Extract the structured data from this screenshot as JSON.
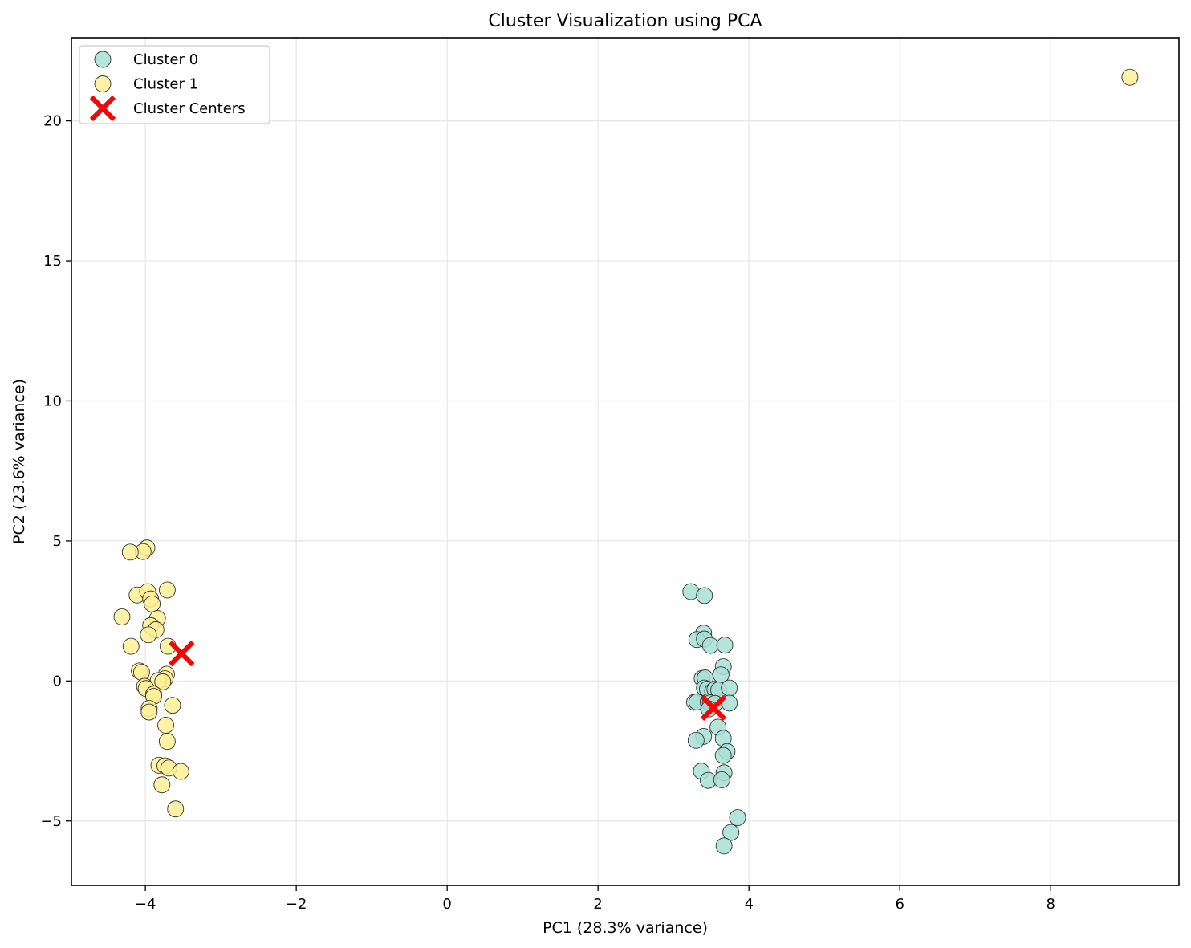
{
  "chart_data": {
    "type": "scatter",
    "title": "Cluster Visualization using PCA",
    "xlabel": "PC1 (28.3% variance)",
    "ylabel": "PC2 (23.6% variance)",
    "xlim": [
      -4.98,
      9.7
    ],
    "ylim": [
      -7.3,
      22.97
    ],
    "xticks": [
      -4,
      -2,
      0,
      2,
      4,
      6,
      8
    ],
    "xtick_labels": [
      "−4",
      "−2",
      "0",
      "2",
      "4",
      "6",
      "8"
    ],
    "yticks": [
      -5,
      0,
      5,
      10,
      15,
      20
    ],
    "ytick_labels": [
      "−5",
      "0",
      "5",
      "10",
      "15",
      "20"
    ],
    "grid": true,
    "legend": {
      "placement": "top-left"
    },
    "series": [
      {
        "name": "Cluster 0",
        "marker": "circle",
        "color": "#a8dfd3",
        "points": [
          [
            3.23,
            3.19
          ],
          [
            3.41,
            3.05
          ],
          [
            3.4,
            1.71
          ],
          [
            3.31,
            1.48
          ],
          [
            3.41,
            1.5
          ],
          [
            3.49,
            1.27
          ],
          [
            3.68,
            1.28
          ],
          [
            3.66,
            0.51
          ],
          [
            3.63,
            0.22
          ],
          [
            3.38,
            0.09
          ],
          [
            3.42,
            0.11
          ],
          [
            3.41,
            -0.25
          ],
          [
            3.45,
            -0.29
          ],
          [
            3.52,
            -0.36
          ],
          [
            3.55,
            -0.3
          ],
          [
            3.6,
            -0.32
          ],
          [
            3.74,
            -0.25
          ],
          [
            3.28,
            -0.76
          ],
          [
            3.31,
            -0.75
          ],
          [
            3.46,
            -0.75
          ],
          [
            3.49,
            -0.78
          ],
          [
            3.55,
            -0.8
          ],
          [
            3.74,
            -0.79
          ],
          [
            3.47,
            -1.0
          ],
          [
            3.59,
            -1.65
          ],
          [
            3.66,
            -2.05
          ],
          [
            3.4,
            -1.98
          ],
          [
            3.3,
            -2.12
          ],
          [
            3.71,
            -2.52
          ],
          [
            3.66,
            -2.66
          ],
          [
            3.67,
            -3.28
          ],
          [
            3.37,
            -3.22
          ],
          [
            3.46,
            -3.55
          ],
          [
            3.64,
            -3.53
          ],
          [
            3.85,
            -4.88
          ],
          [
            3.76,
            -5.41
          ],
          [
            3.67,
            -5.89
          ]
        ]
      },
      {
        "name": "Cluster 1",
        "marker": "circle",
        "color": "#fdf095",
        "points": [
          [
            9.05,
            21.56
          ],
          [
            -3.98,
            4.75
          ],
          [
            -4.03,
            4.62
          ],
          [
            -4.2,
            4.6
          ],
          [
            -3.71,
            3.25
          ],
          [
            -4.11,
            3.07
          ],
          [
            -3.97,
            3.19
          ],
          [
            -3.93,
            2.93
          ],
          [
            -3.91,
            2.75
          ],
          [
            -4.31,
            2.29
          ],
          [
            -3.84,
            2.23
          ],
          [
            -3.93,
            1.98
          ],
          [
            -3.86,
            1.83
          ],
          [
            -3.96,
            1.65
          ],
          [
            -4.19,
            1.24
          ],
          [
            -3.7,
            1.24
          ],
          [
            -4.08,
            0.36
          ],
          [
            -4.05,
            0.31
          ],
          [
            -3.72,
            0.24
          ],
          [
            -3.74,
            0.08
          ],
          [
            -3.83,
            0.01
          ],
          [
            -3.77,
            -0.03
          ],
          [
            -4.01,
            -0.19
          ],
          [
            -3.99,
            -0.27
          ],
          [
            -3.89,
            -0.47
          ],
          [
            -3.89,
            -0.55
          ],
          [
            -3.64,
            -0.87
          ],
          [
            -3.95,
            -0.98
          ],
          [
            -3.95,
            -1.11
          ],
          [
            -3.73,
            -1.58
          ],
          [
            -3.71,
            -2.16
          ],
          [
            -3.82,
            -3.01
          ],
          [
            -3.74,
            -3.03
          ],
          [
            -3.69,
            -3.11
          ],
          [
            -3.53,
            -3.23
          ],
          [
            -3.78,
            -3.71
          ],
          [
            -3.6,
            -4.57
          ]
        ]
      },
      {
        "name": "Cluster Centers",
        "marker": "x",
        "color": "#ff0000",
        "points": [
          [
            3.53,
            -0.96
          ],
          [
            -3.52,
            0.98
          ]
        ]
      }
    ]
  }
}
